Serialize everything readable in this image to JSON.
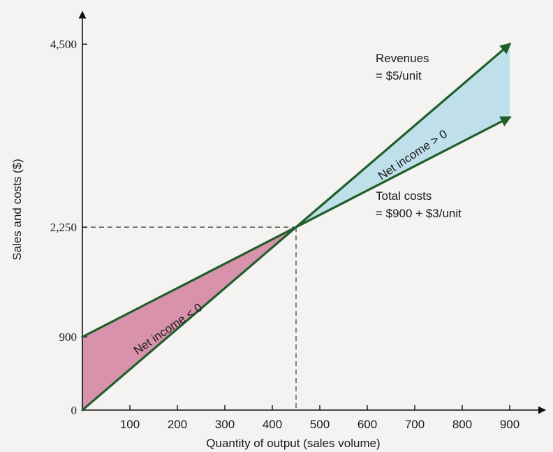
{
  "chart_data": {
    "type": "line",
    "title": "",
    "xlabel": "Quantity of output (sales volume)",
    "ylabel": "Sales and costs ($)",
    "x_ticks": [
      100,
      200,
      300,
      400,
      500,
      600,
      700,
      800,
      900
    ],
    "y_ticks": [
      {
        "value": 0,
        "label": "0"
      },
      {
        "value": 900,
        "label": "900"
      },
      {
        "value": 2250,
        "label": "2,250"
      },
      {
        "value": 4500,
        "label": "4,500"
      }
    ],
    "xlim": [
      0,
      975
    ],
    "ylim": [
      0,
      4900
    ],
    "series": [
      {
        "name": "Revenues",
        "formula": "= $5/unit",
        "x": [
          0,
          900
        ],
        "y": [
          0,
          4500
        ],
        "color": "#1f5e2a"
      },
      {
        "name": "Total costs",
        "formula": "= $900 + $3/unit",
        "x": [
          0,
          900
        ],
        "y": [
          900,
          3600
        ],
        "color": "#1f5e2a"
      }
    ],
    "break_even": {
      "x": 450,
      "y": 2250
    },
    "regions": [
      {
        "label": "Net income < 0",
        "color": "#d992ab"
      },
      {
        "label": "Net income > 0",
        "color": "#bfe0ea"
      }
    ],
    "grid": false
  }
}
